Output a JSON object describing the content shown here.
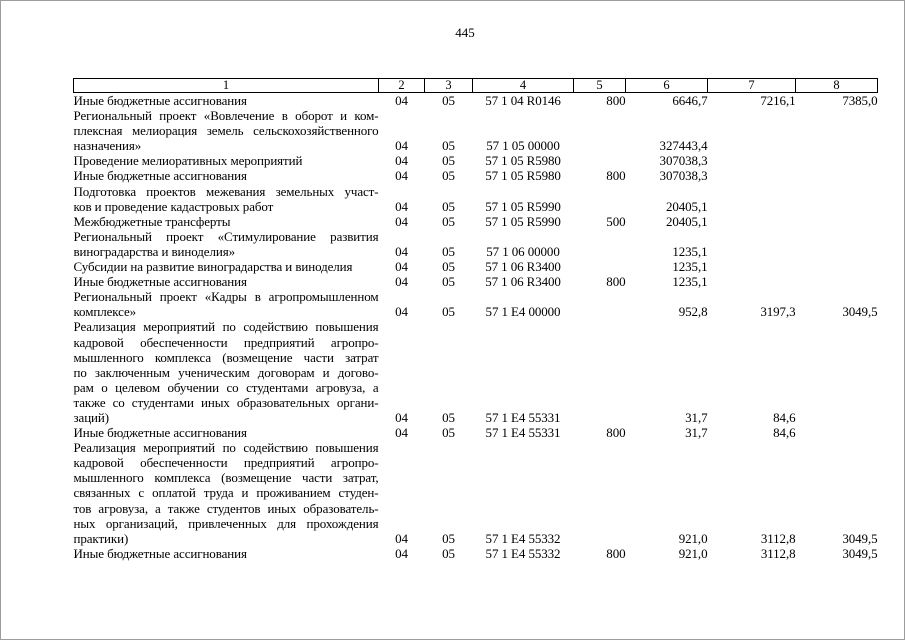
{
  "page": {
    "number": "445"
  },
  "table": {
    "header": [
      "1",
      "2",
      "3",
      "4",
      "5",
      "6",
      "7",
      "8"
    ],
    "rows": [
      {
        "label_lines": [
          "Иные бюджетные ассигнования"
        ],
        "c2": "04",
        "c3": "05",
        "c4": "57 1 04 R0146",
        "c5": "800",
        "c6": "6646,7",
        "c7": "7216,1",
        "c8": "7385,0"
      },
      {
        "label_lines": [
          "Региональный проект «Вовлечение в оборот и ком-",
          "плексная мелиорация земель сельскохозяйственного",
          "назначения»"
        ],
        "c2": "04",
        "c3": "05",
        "c4": "57 1 05 00000",
        "c5": "",
        "c6": "327443,4",
        "c7": "",
        "c8": ""
      },
      {
        "label_lines": [
          "Проведение мелиоративных мероприятий"
        ],
        "c2": "04",
        "c3": "05",
        "c4": "57 1 05 R5980",
        "c5": "",
        "c6": "307038,3",
        "c7": "",
        "c8": ""
      },
      {
        "label_lines": [
          "Иные бюджетные ассигнования"
        ],
        "c2": "04",
        "c3": "05",
        "c4": "57 1 05 R5980",
        "c5": "800",
        "c6": "307038,3",
        "c7": "",
        "c8": ""
      },
      {
        "label_lines": [
          "Подготовка проектов межевания земельных участ-",
          "ков и проведение кадастровых работ"
        ],
        "c2": "04",
        "c3": "05",
        "c4": "57 1 05 R5990",
        "c5": "",
        "c6": "20405,1",
        "c7": "",
        "c8": ""
      },
      {
        "label_lines": [
          "Межбюджетные трансферты"
        ],
        "c2": "04",
        "c3": "05",
        "c4": "57 1 05 R5990",
        "c5": "500",
        "c6": "20405,1",
        "c7": "",
        "c8": ""
      },
      {
        "label_lines": [
          "Региональный проект «Стимулирование развития",
          "виноградарства и виноделия»"
        ],
        "c2": "04",
        "c3": "05",
        "c4": "57 1 06 00000",
        "c5": "",
        "c6": "1235,1",
        "c7": "",
        "c8": ""
      },
      {
        "label_lines": [
          "Субсидии на развитие виноградарства и виноделия"
        ],
        "c2": "04",
        "c3": "05",
        "c4": "57 1 06 R3400",
        "c5": "",
        "c6": "1235,1",
        "c7": "",
        "c8": ""
      },
      {
        "label_lines": [
          "Иные бюджетные ассигнования"
        ],
        "c2": "04",
        "c3": "05",
        "c4": "57 1 06 R3400",
        "c5": "800",
        "c6": "1235,1",
        "c7": "",
        "c8": ""
      },
      {
        "label_lines": [
          "Региональный проект «Кадры в агропромышленном",
          "комплексе»"
        ],
        "c2": "04",
        "c3": "05",
        "c4": "57 1 E4 00000",
        "c5": "",
        "c6": "952,8",
        "c7": "3197,3",
        "c8": "3049,5"
      },
      {
        "label_lines": [
          "Реализация мероприятий по содействию повышения",
          "кадровой обеспеченности предприятий агропро-",
          "мышленного комплекса (возмещение части затрат",
          "по заключенным ученическим договорам и догово-",
          "рам о целевом обучении со студентами агровуза, а",
          "также со студентами иных образовательных органи-",
          "заций)"
        ],
        "c2": "04",
        "c3": "05",
        "c4": "57 1 E4 55331",
        "c5": "",
        "c6": "31,7",
        "c7": "84,6",
        "c8": ""
      },
      {
        "label_lines": [
          "Иные бюджетные ассигнования"
        ],
        "c2": "04",
        "c3": "05",
        "c4": "57 1 E4 55331",
        "c5": "800",
        "c6": "31,7",
        "c7": "84,6",
        "c8": ""
      },
      {
        "label_lines": [
          "Реализация мероприятий по содействию повышения",
          "кадровой обеспеченности предприятий агропро-",
          "мышленного комплекса (возмещение части затрат,",
          "связанных с оплатой труда и проживанием студен-",
          "тов агровуза, а также студентов иных образователь-",
          "ных организаций, привлеченных для прохождения",
          "практики)"
        ],
        "c2": "04",
        "c3": "05",
        "c4": "57 1 E4 55332",
        "c5": "",
        "c6": "921,0",
        "c7": "3112,8",
        "c8": "3049,5"
      },
      {
        "label_lines": [
          "Иные бюджетные ассигнования"
        ],
        "c2": "04",
        "c3": "05",
        "c4": "57 1 E4 55332",
        "c5": "800",
        "c6": "921,0",
        "c7": "3112,8",
        "c8": "3049,5"
      }
    ]
  }
}
